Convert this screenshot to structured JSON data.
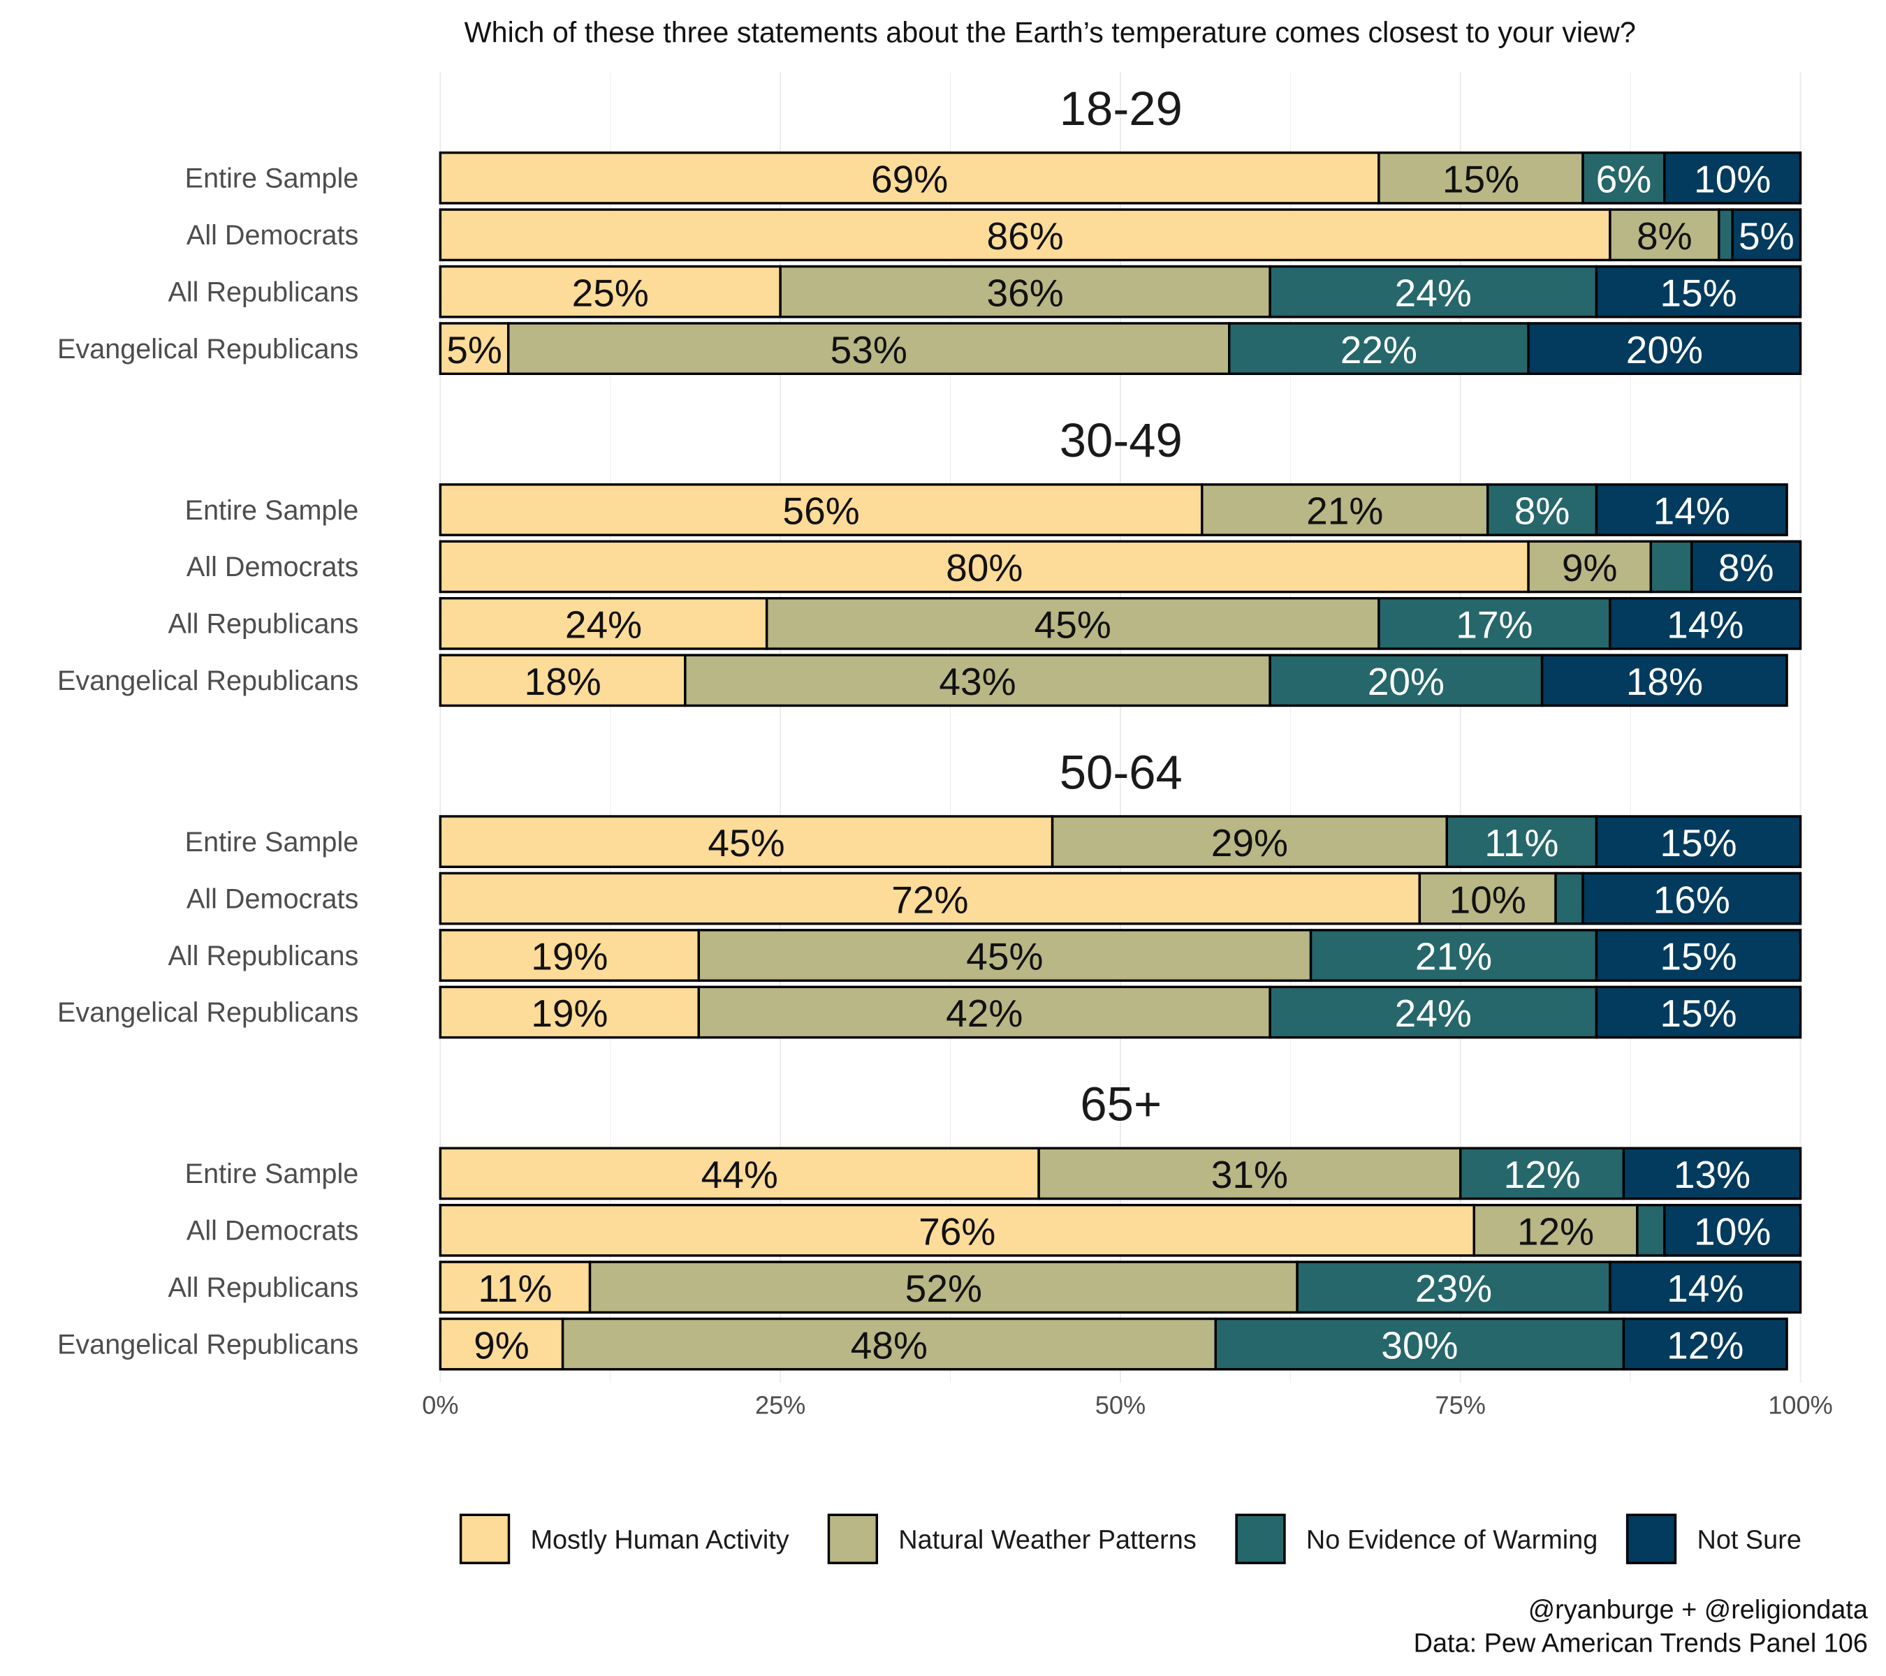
{
  "chart_data": {
    "type": "bar",
    "orientation": "horizontal-stacked-100",
    "title": "Which of these three statements about the Earth’s temperature comes closest to your view?",
    "categories": [
      "Entire Sample",
      "All Democrats",
      "All Republicans",
      "Evangelical Republicans"
    ],
    "series_names": [
      "Mostly Human Activity",
      "Natural Weather Patterns",
      "No Evidence of Warming",
      "Not Sure"
    ],
    "colors": [
      "#FDDB98",
      "#B8B785",
      "#26676B",
      "#023B5E"
    ],
    "label_colors": [
      "#111111",
      "#111111",
      "#FFFFFF",
      "#FFFFFF"
    ],
    "panels": [
      {
        "title": "18-29",
        "values": [
          [
            69,
            15,
            6,
            10
          ],
          [
            86,
            8,
            1,
            5
          ],
          [
            25,
            36,
            24,
            15
          ],
          [
            5,
            53,
            22,
            20
          ]
        ]
      },
      {
        "title": "30-49",
        "values": [
          [
            56,
            21,
            8,
            14
          ],
          [
            80,
            9,
            3,
            8
          ],
          [
            24,
            45,
            17,
            14
          ],
          [
            18,
            43,
            20,
            18
          ]
        ]
      },
      {
        "title": "50-64",
        "values": [
          [
            45,
            29,
            11,
            15
          ],
          [
            72,
            10,
            2,
            16
          ],
          [
            19,
            45,
            21,
            15
          ],
          [
            19,
            42,
            24,
            15
          ]
        ]
      },
      {
        "title": "65+",
        "values": [
          [
            44,
            31,
            12,
            13
          ],
          [
            76,
            12,
            2,
            10
          ],
          [
            11,
            52,
            23,
            14
          ],
          [
            9,
            48,
            30,
            12
          ]
        ]
      }
    ],
    "xlim": [
      0,
      100
    ],
    "xticks": [
      "0%",
      "25%",
      "50%",
      "75%",
      "100%"
    ],
    "legend": "bottom"
  },
  "caption": {
    "line1": "@ryanburge + @religiondata",
    "line2": "Data: Pew American Trends Panel 106"
  }
}
